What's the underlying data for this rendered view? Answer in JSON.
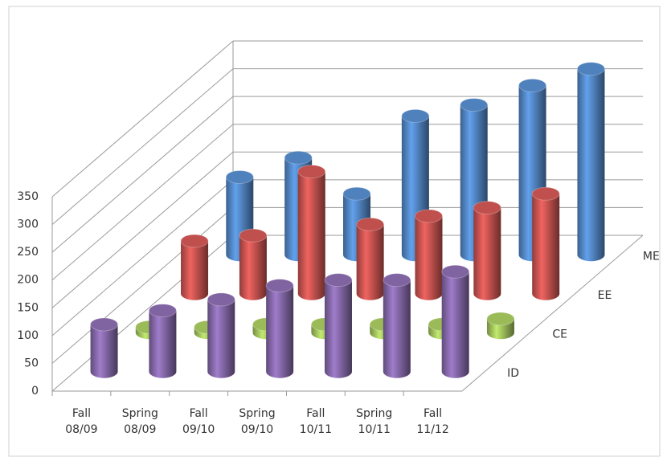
{
  "chart_data": {
    "type": "bar3d",
    "categories": [
      "Fall 08/09",
      "Spring 08/09",
      "Fall 09/10",
      "Spring 09/10",
      "Fall 10/11",
      "Spring 10/11",
      "Fall 11/12"
    ],
    "series": [
      {
        "name": "ID",
        "color": "#8064a2",
        "values": [
          85,
          110,
          130,
          155,
          165,
          165,
          180
        ]
      },
      {
        "name": "CE",
        "color": "#9bbb59",
        "values": [
          10,
          10,
          15,
          15,
          15,
          15,
          25
        ]
      },
      {
        "name": "EE",
        "color": "#c0504d",
        "values": [
          95,
          105,
          220,
          125,
          140,
          155,
          180
        ]
      },
      {
        "name": "ME",
        "color": "#4f81bd",
        "values": [
          140,
          175,
          110,
          250,
          270,
          305,
          335
        ]
      }
    ],
    "ylim": [
      0,
      350
    ],
    "yticks": [
      0,
      50,
      100,
      150,
      200,
      250,
      300,
      350
    ],
    "grid": true
  }
}
